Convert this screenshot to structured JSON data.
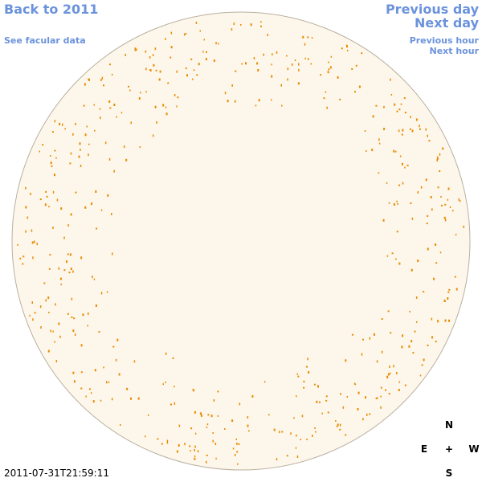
{
  "nav": {
    "back_year": "Back to 2011",
    "facular_data": "See facular data",
    "previous_day": "Previous day",
    "next_day": "Next day",
    "previous_hour": "Previous hour",
    "next_hour": "Next hour"
  },
  "timestamp": "2011-07-31T21:59:11",
  "compass": {
    "north": "N",
    "east": "E",
    "center": "+",
    "west": "W",
    "south": "S"
  }
}
